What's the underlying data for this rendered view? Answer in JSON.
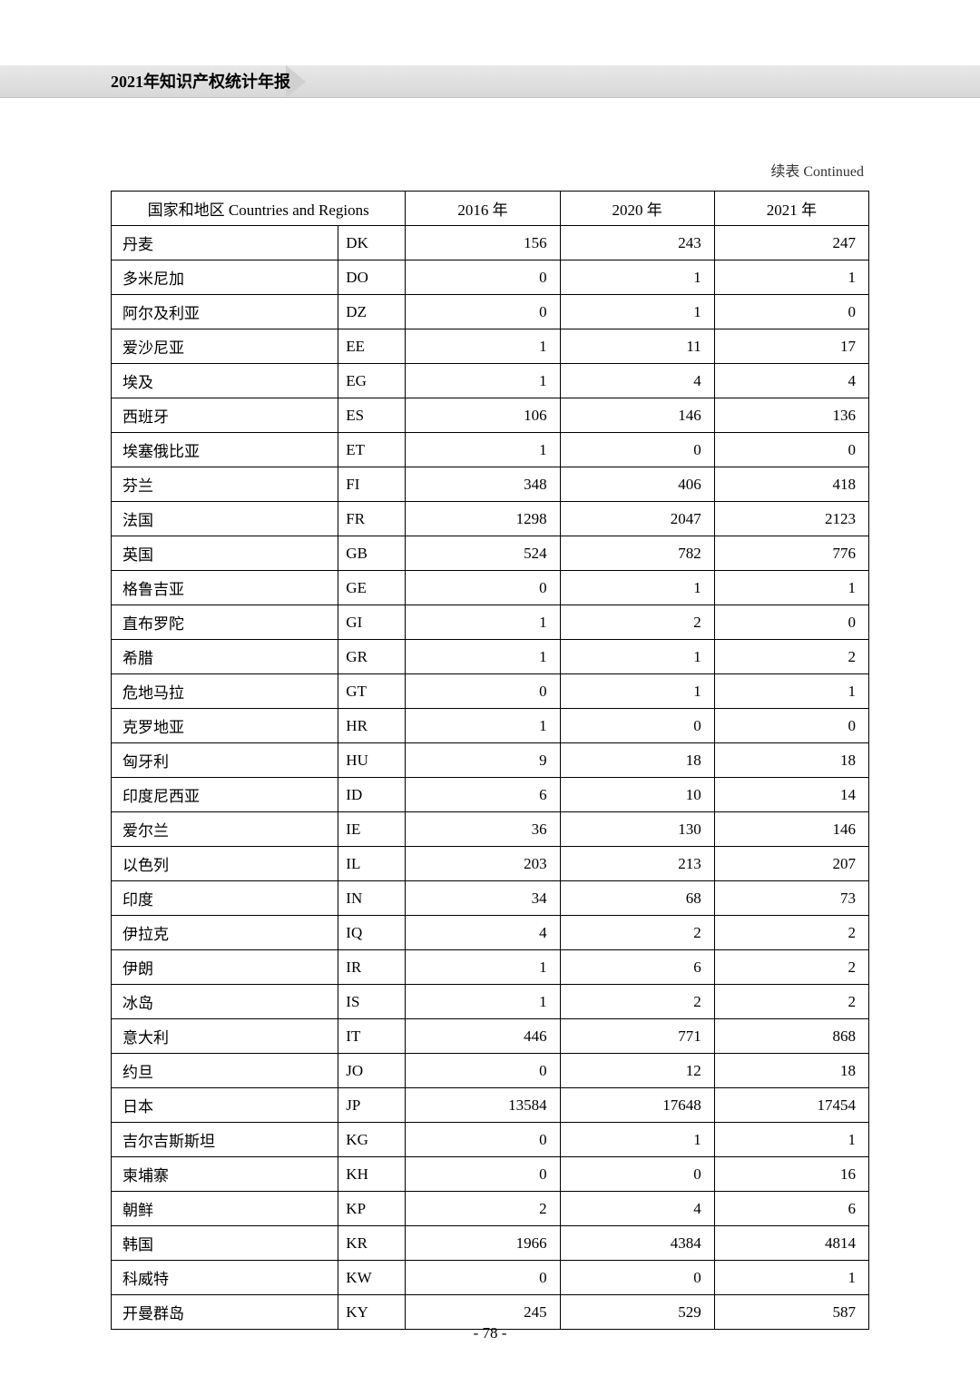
{
  "header": {
    "title": "2021年知识产权统计年报"
  },
  "continued_label": "续表 Continued",
  "table": {
    "header": {
      "countries_region": "国家和地区 Countries and Regions",
      "year_2016": "2016 年",
      "year_2020": "2020 年",
      "year_2021": "2021 年"
    },
    "rows": [
      {
        "country": "丹麦",
        "code": "DK",
        "y2016": "156",
        "y2020": "243",
        "y2021": "247"
      },
      {
        "country": "多米尼加",
        "code": "DO",
        "y2016": "0",
        "y2020": "1",
        "y2021": "1"
      },
      {
        "country": "阿尔及利亚",
        "code": "DZ",
        "y2016": "0",
        "y2020": "1",
        "y2021": "0"
      },
      {
        "country": "爱沙尼亚",
        "code": "EE",
        "y2016": "1",
        "y2020": "11",
        "y2021": "17"
      },
      {
        "country": "埃及",
        "code": "EG",
        "y2016": "1",
        "y2020": "4",
        "y2021": "4"
      },
      {
        "country": "西班牙",
        "code": "ES",
        "y2016": "106",
        "y2020": "146",
        "y2021": "136"
      },
      {
        "country": "埃塞俄比亚",
        "code": "ET",
        "y2016": "1",
        "y2020": "0",
        "y2021": "0"
      },
      {
        "country": "芬兰",
        "code": "FI",
        "y2016": "348",
        "y2020": "406",
        "y2021": "418"
      },
      {
        "country": "法国",
        "code": "FR",
        "y2016": "1298",
        "y2020": "2047",
        "y2021": "2123"
      },
      {
        "country": "英国",
        "code": "GB",
        "y2016": "524",
        "y2020": "782",
        "y2021": "776"
      },
      {
        "country": "格鲁吉亚",
        "code": "GE",
        "y2016": "0",
        "y2020": "1",
        "y2021": "1"
      },
      {
        "country": "直布罗陀",
        "code": "GI",
        "y2016": "1",
        "y2020": "2",
        "y2021": "0"
      },
      {
        "country": "希腊",
        "code": "GR",
        "y2016": "1",
        "y2020": "1",
        "y2021": "2"
      },
      {
        "country": "危地马拉",
        "code": "GT",
        "y2016": "0",
        "y2020": "1",
        "y2021": "1"
      },
      {
        "country": "克罗地亚",
        "code": "HR",
        "y2016": "1",
        "y2020": "0",
        "y2021": "0"
      },
      {
        "country": "匈牙利",
        "code": "HU",
        "y2016": "9",
        "y2020": "18",
        "y2021": "18"
      },
      {
        "country": "印度尼西亚",
        "code": "ID",
        "y2016": "6",
        "y2020": "10",
        "y2021": "14"
      },
      {
        "country": "爱尔兰",
        "code": "IE",
        "y2016": "36",
        "y2020": "130",
        "y2021": "146"
      },
      {
        "country": "以色列",
        "code": "IL",
        "y2016": "203",
        "y2020": "213",
        "y2021": "207"
      },
      {
        "country": "印度",
        "code": "IN",
        "y2016": "34",
        "y2020": "68",
        "y2021": "73"
      },
      {
        "country": "伊拉克",
        "code": "IQ",
        "y2016": "4",
        "y2020": "2",
        "y2021": "2"
      },
      {
        "country": "伊朗",
        "code": "IR",
        "y2016": "1",
        "y2020": "6",
        "y2021": "2"
      },
      {
        "country": "冰岛",
        "code": "IS",
        "y2016": "1",
        "y2020": "2",
        "y2021": "2"
      },
      {
        "country": "意大利",
        "code": "IT",
        "y2016": "446",
        "y2020": "771",
        "y2021": "868"
      },
      {
        "country": "约旦",
        "code": "JO",
        "y2016": "0",
        "y2020": "12",
        "y2021": "18"
      },
      {
        "country": "日本",
        "code": "JP",
        "y2016": "13584",
        "y2020": "17648",
        "y2021": "17454"
      },
      {
        "country": "吉尔吉斯斯坦",
        "code": "KG",
        "y2016": "0",
        "y2020": "1",
        "y2021": "1"
      },
      {
        "country": "柬埔寨",
        "code": "KH",
        "y2016": "0",
        "y2020": "0",
        "y2021": "16"
      },
      {
        "country": "朝鲜",
        "code": "KP",
        "y2016": "2",
        "y2020": "4",
        "y2021": "6"
      },
      {
        "country": "韩国",
        "code": "KR",
        "y2016": "1966",
        "y2020": "4384",
        "y2021": "4814"
      },
      {
        "country": "科威特",
        "code": "KW",
        "y2016": "0",
        "y2020": "0",
        "y2021": "1"
      },
      {
        "country": "开曼群岛",
        "code": "KY",
        "y2016": "245",
        "y2020": "529",
        "y2021": "587"
      }
    ]
  },
  "page_number": "- 78 -"
}
